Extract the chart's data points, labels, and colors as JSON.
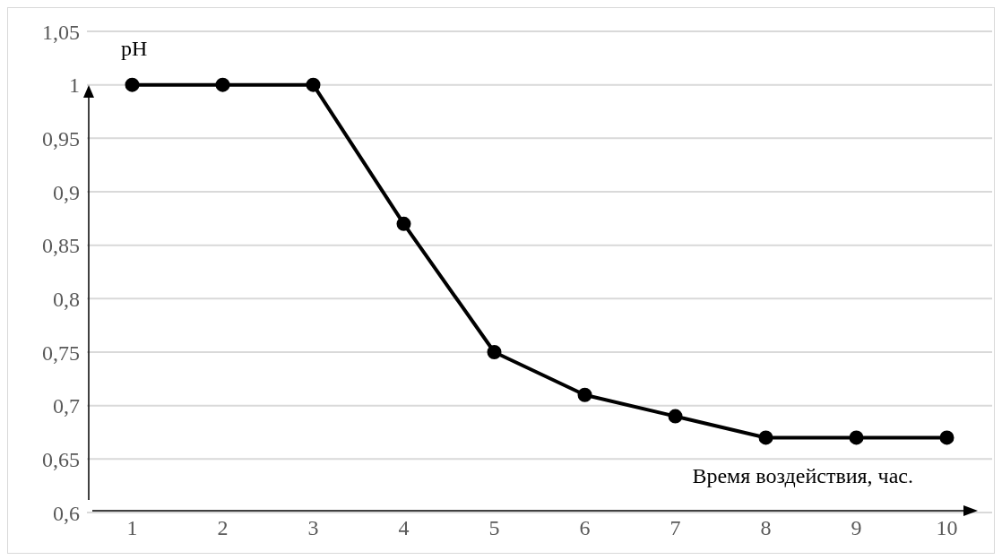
{
  "chart_data": {
    "type": "line",
    "xlabel": "Время воздействия, час.",
    "ylabel": "pH",
    "categories": [
      "1",
      "2",
      "3",
      "4",
      "5",
      "6",
      "7",
      "8",
      "9",
      "10"
    ],
    "series": [
      {
        "color": "#000000",
        "values": [
          1,
          1,
          1,
          0.87,
          0.75,
          0.71,
          0.69,
          0.67,
          0.67,
          0.67
        ]
      }
    ],
    "ylim": [
      0.6,
      1.05
    ],
    "yticks": [
      {
        "value": 0.6,
        "label": "0,6"
      },
      {
        "value": 0.65,
        "label": "0,65"
      },
      {
        "value": 0.7,
        "label": "0,7"
      },
      {
        "value": 0.75,
        "label": "0,75"
      },
      {
        "value": 0.8,
        "label": "0,8"
      },
      {
        "value": 0.85,
        "label": "0,85"
      },
      {
        "value": 0.9,
        "label": "0,9"
      },
      {
        "value": 0.95,
        "label": "0,95"
      },
      {
        "value": 1,
        "label": "1"
      },
      {
        "value": 1.05,
        "label": "1,05"
      }
    ],
    "grid": "y",
    "marker": "circle",
    "line_style": "solid"
  }
}
